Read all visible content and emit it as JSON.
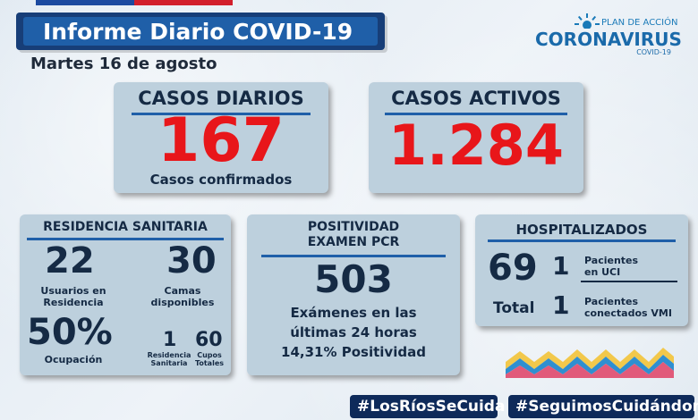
{
  "header": {
    "title": "Informe Diario COVID-19",
    "date": "Martes 16 de agosto"
  },
  "logo": {
    "plan": "PLAN DE ACCIÓN",
    "brand": "CORONAVIRUS",
    "sub": "COVID-19"
  },
  "casos_diarios": {
    "title": "CASOS DIARIOS",
    "value": "167",
    "label": "Casos confirmados"
  },
  "casos_activos": {
    "title": "CASOS ACTIVOS",
    "value": "1.284"
  },
  "residencia": {
    "title": "RESIDENCIA SANITARIA",
    "usuarios_value": "22",
    "usuarios_label_1": "Usuarios en",
    "usuarios_label_2": "Residencia",
    "camas_value": "30",
    "camas_label_1": "Camas",
    "camas_label_2": "disponibles",
    "ocupacion_value": "50%",
    "ocupacion_label": "Ocupación",
    "residencias_value": "1",
    "residencias_label": "Residencia",
    "residencias_label_2": "Sanitaria",
    "cupos_value": "60",
    "cupos_label_1": "Cupos",
    "cupos_label_2": "Totales"
  },
  "positividad": {
    "title_1": "POSITIVIDAD",
    "title_2": "EXAMEN PCR",
    "value": "503",
    "line_1": "Exámenes en las",
    "line_2": "últimas 24 horas",
    "line_3": "14,31% Positividad"
  },
  "hospitalizados": {
    "title": "HOSPITALIZADOS",
    "total_hosp": "69",
    "uci_value": "1",
    "uci_label_1": "Pacientes",
    "uci_label_2": "en UCI",
    "total_label": "Total",
    "vmi_value": "1",
    "vmi_label_1": "Pacientes",
    "vmi_label_2": "conectados VMI"
  },
  "hashtags": {
    "tag_1": "#LosRíosSeCuida",
    "tag_2": "#SeguimosCuidándonos"
  },
  "colors": {
    "accent_red": "#e8161a",
    "brand_blue": "#1f5fa8",
    "card_bg": "#bdd0dd"
  }
}
